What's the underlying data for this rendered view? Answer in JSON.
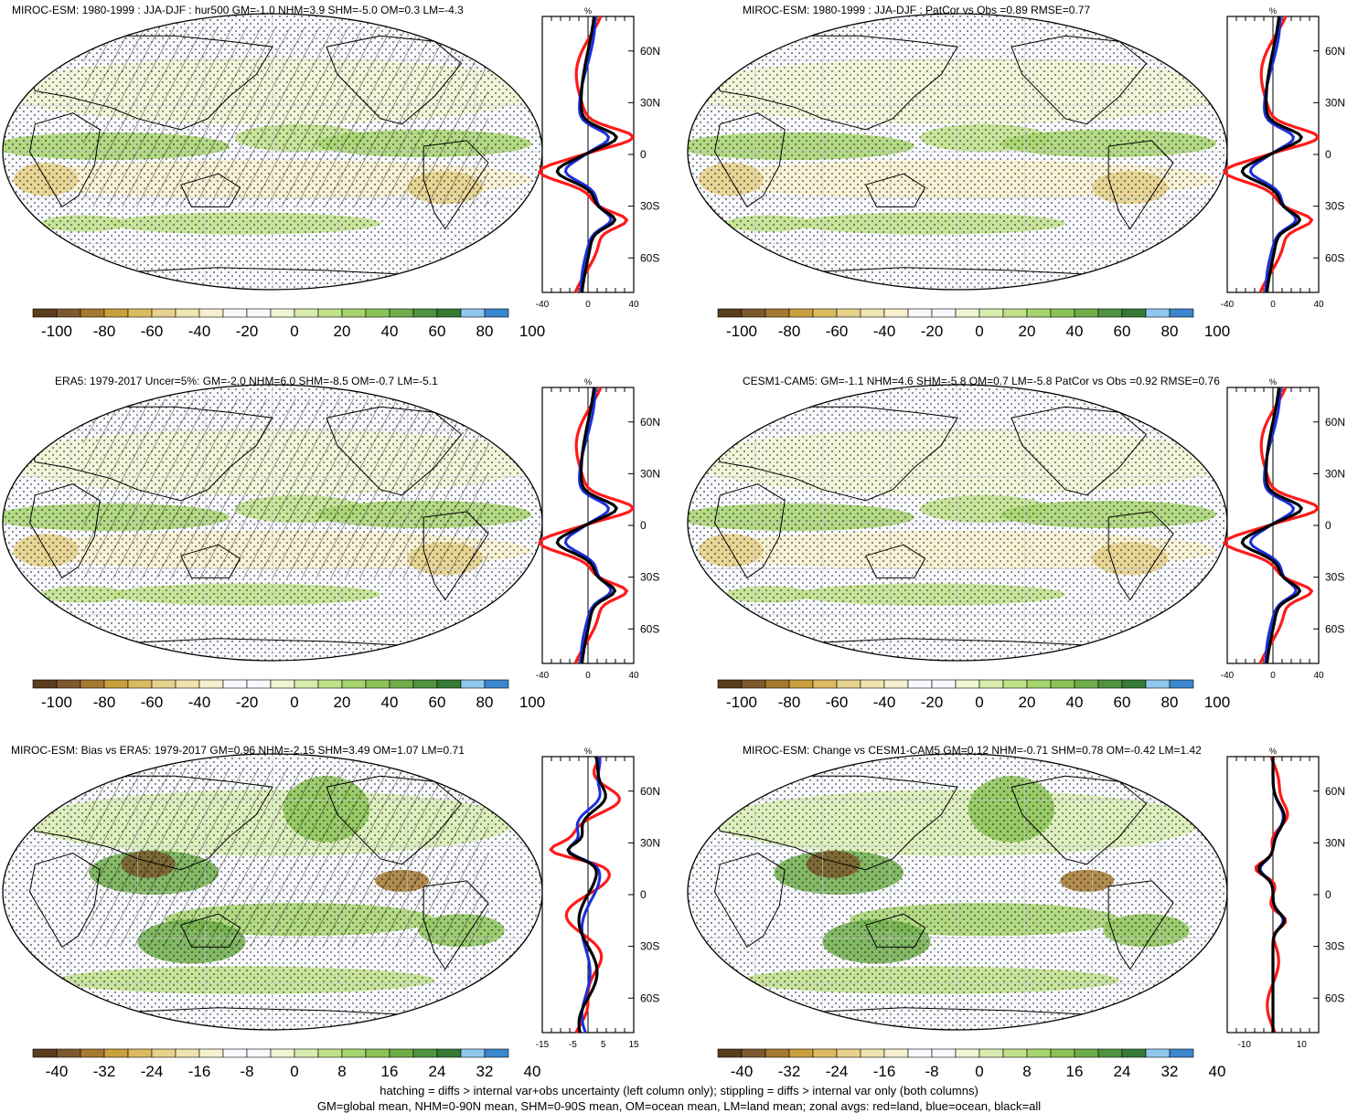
{
  "figure": {
    "panels": [
      {
        "title": "MIROC-ESM: 1980-1999 : JJA-DJF : hur500 GM=-1.0 NHM=3.9 SHM=-5.0 OM=0.3 LM=-4.3",
        "colorbar_labels": [
          "-100",
          "-80",
          "-60",
          "-40",
          "-20",
          "0",
          "20",
          "40",
          "60",
          "80",
          "100"
        ],
        "zonal_xticks": [
          "-40",
          "0",
          "40"
        ],
        "zonal_unit": "%",
        "lat_labels": [
          "60N",
          "30N",
          "0",
          "30S",
          "60S"
        ],
        "hatching": true
      },
      {
        "title": "MIROC-ESM: 1980-1999 : JJA-DJF : PatCor vs Obs =0.89 RMSE=0.77",
        "colorbar_labels": [
          "-100",
          "-80",
          "-60",
          "-40",
          "-20",
          "0",
          "20",
          "40",
          "60",
          "80",
          "100"
        ],
        "zonal_xticks": [
          "-40",
          "0",
          "40"
        ],
        "zonal_unit": "%",
        "lat_labels": [
          "60N",
          "30N",
          "0",
          "30S",
          "60S"
        ],
        "hatching": false
      },
      {
        "title": "ERA5: 1979-2017 Uncer=5%: GM=-2.0 NHM=6.0 SHM=-8.5 OM=-0.7 LM=-5.1",
        "colorbar_labels": [
          "-100",
          "-80",
          "-60",
          "-40",
          "-20",
          "0",
          "20",
          "40",
          "60",
          "80",
          "100"
        ],
        "zonal_xticks": [
          "-40",
          "0",
          "40"
        ],
        "zonal_unit": "%",
        "lat_labels": [
          "60N",
          "30N",
          "0",
          "30S",
          "60S"
        ],
        "hatching": true
      },
      {
        "title": "CESM1-CAM5: GM=-1.1 NHM=4.6 SHM=-5.8 OM=0.7 LM=-5.8 PatCor vs Obs =0.92 RMSE=0.76",
        "colorbar_labels": [
          "-100",
          "-80",
          "-60",
          "-40",
          "-20",
          "0",
          "20",
          "40",
          "60",
          "80",
          "100"
        ],
        "zonal_xticks": [
          "-40",
          "0",
          "40"
        ],
        "zonal_unit": "%",
        "lat_labels": [
          "60N",
          "30N",
          "0",
          "30S",
          "60S"
        ],
        "hatching": false
      },
      {
        "title": "MIROC-ESM: Bias vs ERA5: 1979-2017 GM=0.96 NHM=-2.15 SHM=3.49 OM=1.07 LM=0.71",
        "colorbar_labels": [
          "-40",
          "-32",
          "-24",
          "-16",
          "-8",
          "0",
          "8",
          "16",
          "24",
          "32",
          "40"
        ],
        "zonal_xticks": [
          "-15",
          "-5",
          "5",
          "15"
        ],
        "zonal_unit": "%",
        "lat_labels": [
          "60N",
          "30N",
          "0",
          "30S",
          "60S"
        ],
        "hatching": true
      },
      {
        "title": "MIROC-ESM: Change vs CESM1-CAM5 GM=0.12 NHM=-0.71 SHM=0.78 OM=-0.42 LM=1.42",
        "colorbar_labels": [
          "-40",
          "-32",
          "-24",
          "-16",
          "-8",
          "0",
          "8",
          "16",
          "24",
          "32",
          "40"
        ],
        "zonal_xticks": [
          "-10",
          "10"
        ],
        "zonal_unit": "%",
        "lat_labels": [
          "60N",
          "30N",
          "0",
          "30S",
          "60S"
        ],
        "hatching": false
      }
    ],
    "colors": {
      "palette": [
        "#5a3d1c",
        "#7d5a2e",
        "#a5792f",
        "#c9a03d",
        "#dcbb60",
        "#e6d28d",
        "#efe3b0",
        "#f6efd0",
        "#f8f9fc",
        "#f8f9fc",
        "#eef6d3",
        "#d7ecae",
        "#bfe18a",
        "#a6d46d",
        "#8cc357",
        "#6fad4a",
        "#4f9340",
        "#347a35",
        "#8fc8ee",
        "#3b86cf"
      ],
      "land_line": "#ff1a1a",
      "ocean_line": "#1a2fdd",
      "all_line": "#000000"
    },
    "footer": [
      "hatching = diffs > internal var+obs uncertainty (left column only); stippling = diffs > internal var only (both columns)",
      "GM=global mean, NHM=0-90N mean, SHM=0-90S mean, OM=ocean mean, LM=land mean; zonal avgs: red=land, blue=ocean, black=all"
    ]
  }
}
